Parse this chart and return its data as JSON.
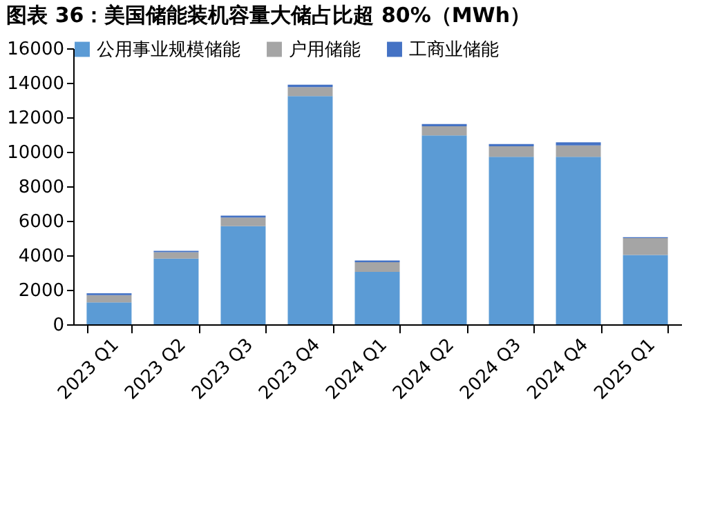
{
  "chart_data": {
    "type": "bar",
    "title": "图表 36：美国储能装机容量大储占比超 80%（MWh）",
    "categories": [
      "2023 Q1",
      "2023 Q2",
      "2023 Q3",
      "2023 Q4",
      "2024 Q1",
      "2024 Q2",
      "2024 Q3",
      "2024 Q4",
      "2025 Q1"
    ],
    "stacked": true,
    "series": [
      {
        "name": "公用事业规模储能",
        "color": "#5b9bd5",
        "values": [
          1270,
          3810,
          5690,
          13230,
          3040,
          10950,
          9710,
          9710,
          4020
        ]
      },
      {
        "name": "户用储能",
        "color": "#a5a5a5",
        "values": [
          420,
          370,
          500,
          520,
          560,
          530,
          610,
          660,
          980
        ]
      },
      {
        "name": "工商业储能",
        "color": "#4472c4",
        "values": [
          110,
          80,
          110,
          140,
          100,
          130,
          130,
          180,
          50
        ]
      }
    ],
    "ylim": [
      0,
      16000
    ],
    "yticks": [
      0,
      2000,
      4000,
      6000,
      8000,
      10000,
      12000,
      14000,
      16000
    ],
    "legend": "top",
    "grid": false
  }
}
